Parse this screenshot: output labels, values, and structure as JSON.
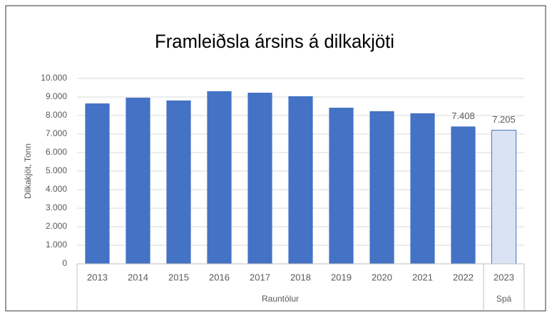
{
  "chart_data": {
    "type": "bar",
    "title": "Framleiðsla ársins á dilkakjöti",
    "y_label": "Dilkakjöt, Tonn",
    "categories": [
      "2013",
      "2014",
      "2015",
      "2016",
      "2017",
      "2018",
      "2019",
      "2020",
      "2021",
      "2022",
      "2023"
    ],
    "values": [
      8650,
      8960,
      8810,
      9310,
      9230,
      9040,
      8420,
      8230,
      8120,
      7408,
      7205
    ],
    "value_labels": [
      null,
      null,
      null,
      null,
      null,
      null,
      null,
      null,
      null,
      "7.408",
      "7.205"
    ],
    "colors": [
      "#4472c4",
      "#4472c4",
      "#4472c4",
      "#4472c4",
      "#4472c4",
      "#4472c4",
      "#4472c4",
      "#4472c4",
      "#4472c4",
      "#4472c4",
      "#dae3f3"
    ],
    "edge_color": "#4472c4",
    "groups": [
      {
        "name": "Rauntölur",
        "categories": [
          "2013",
          "2014",
          "2015",
          "2016",
          "2017",
          "2018",
          "2019",
          "2020",
          "2021",
          "2022"
        ]
      },
      {
        "name": "Spá",
        "categories": [
          "2023"
        ]
      }
    ],
    "ylim": [
      0,
      10000
    ],
    "yticks": [
      0,
      {
        "value": 1000,
        "label": "1.000"
      },
      {
        "value": 2000,
        "label": "2.000"
      },
      {
        "value": 3000,
        "label": "3.000"
      },
      {
        "value": 4000,
        "label": "4.000"
      },
      {
        "value": 5000,
        "label": "5.000"
      },
      {
        "value": 6000,
        "label": "6.000"
      },
      {
        "value": 7000,
        "label": "7.000"
      },
      {
        "value": 8000,
        "label": "8.000"
      },
      {
        "value": 9000,
        "label": "9.000"
      },
      {
        "value": 10000,
        "label": "10.000"
      }
    ],
    "grid": true
  }
}
